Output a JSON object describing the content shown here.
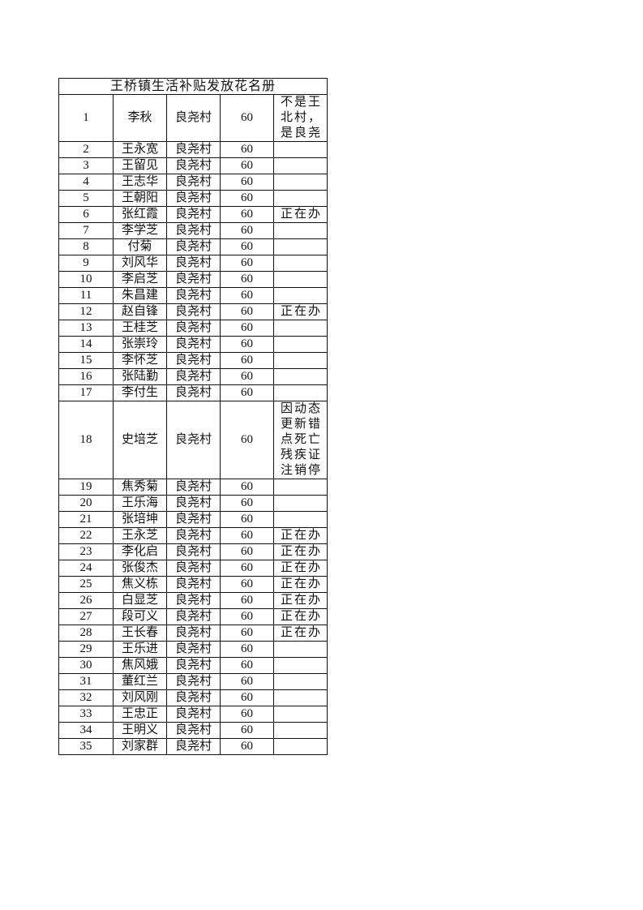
{
  "title": "王桥镇生活补贴发放花名册",
  "rows": [
    {
      "no": "1",
      "name": "李秋",
      "village": "良尧村",
      "amount": "60",
      "note": "不是王北村，是良尧"
    },
    {
      "no": "2",
      "name": "王永宽",
      "village": "良尧村",
      "amount": "60",
      "note": ""
    },
    {
      "no": "3",
      "name": "王留见",
      "village": "良尧村",
      "amount": "60",
      "note": ""
    },
    {
      "no": "4",
      "name": "王志华",
      "village": "良尧村",
      "amount": "60",
      "note": ""
    },
    {
      "no": "5",
      "name": "王朝阳",
      "village": "良尧村",
      "amount": "60",
      "note": ""
    },
    {
      "no": "6",
      "name": "张红霞",
      "village": "良尧村",
      "amount": "60",
      "note": "正在办"
    },
    {
      "no": "7",
      "name": "李学芝",
      "village": "良尧村",
      "amount": "60",
      "note": ""
    },
    {
      "no": "8",
      "name": "付菊",
      "village": "良尧村",
      "amount": "60",
      "note": ""
    },
    {
      "no": "9",
      "name": "刘风华",
      "village": "良尧村",
      "amount": "60",
      "note": ""
    },
    {
      "no": "10",
      "name": "李启芝",
      "village": "良尧村",
      "amount": "60",
      "note": ""
    },
    {
      "no": "11",
      "name": "朱昌建",
      "village": "良尧村",
      "amount": "60",
      "note": ""
    },
    {
      "no": "12",
      "name": "赵自锋",
      "village": "良尧村",
      "amount": "60",
      "note": "正在办"
    },
    {
      "no": "13",
      "name": "王桂芝",
      "village": "良尧村",
      "amount": "60",
      "note": ""
    },
    {
      "no": "14",
      "name": "张崇玲",
      "village": "良尧村",
      "amount": "60",
      "note": ""
    },
    {
      "no": "15",
      "name": "李怀芝",
      "village": "良尧村",
      "amount": "60",
      "note": ""
    },
    {
      "no": "16",
      "name": "张陆勤",
      "village": "良尧村",
      "amount": "60",
      "note": ""
    },
    {
      "no": "17",
      "name": "李付生",
      "village": "良尧村",
      "amount": "60",
      "note": ""
    },
    {
      "no": "18",
      "name": "史培芝",
      "village": "良尧村",
      "amount": "60",
      "note": "因动态更新错点死亡残疾证注销停"
    },
    {
      "no": "19",
      "name": "焦秀菊",
      "village": "良尧村",
      "amount": "60",
      "note": ""
    },
    {
      "no": "20",
      "name": "王乐海",
      "village": "良尧村",
      "amount": "60",
      "note": ""
    },
    {
      "no": "21",
      "name": "张培坤",
      "village": "良尧村",
      "amount": "60",
      "note": ""
    },
    {
      "no": "22",
      "name": "王永芝",
      "village": "良尧村",
      "amount": "60",
      "note": "正在办"
    },
    {
      "no": "23",
      "name": "李化启",
      "village": "良尧村",
      "amount": "60",
      "note": "正在办"
    },
    {
      "no": "24",
      "name": "张俊杰",
      "village": "良尧村",
      "amount": "60",
      "note": "正在办"
    },
    {
      "no": "25",
      "name": "焦义栋",
      "village": "良尧村",
      "amount": "60",
      "note": "正在办"
    },
    {
      "no": "26",
      "name": "白显芝",
      "village": "良尧村",
      "amount": "60",
      "note": "正在办"
    },
    {
      "no": "27",
      "name": "段可义",
      "village": "良尧村",
      "amount": "60",
      "note": "正在办"
    },
    {
      "no": "28",
      "name": "王长春",
      "village": "良尧村",
      "amount": "60",
      "note": "正在办"
    },
    {
      "no": "29",
      "name": "王乐进",
      "village": "良尧村",
      "amount": "60",
      "note": ""
    },
    {
      "no": "30",
      "name": "焦风娥",
      "village": "良尧村",
      "amount": "60",
      "note": ""
    },
    {
      "no": "31",
      "name": "董红兰",
      "village": "良尧村",
      "amount": "60",
      "note": ""
    },
    {
      "no": "32",
      "name": "刘风刚",
      "village": "良尧村",
      "amount": "60",
      "note": ""
    },
    {
      "no": "33",
      "name": "王忠正",
      "village": "良尧村",
      "amount": "60",
      "note": ""
    },
    {
      "no": "34",
      "name": "王明义",
      "village": "良尧村",
      "amount": "60",
      "note": ""
    },
    {
      "no": "35",
      "name": "刘家群",
      "village": "良尧村",
      "amount": "60",
      "note": ""
    }
  ]
}
